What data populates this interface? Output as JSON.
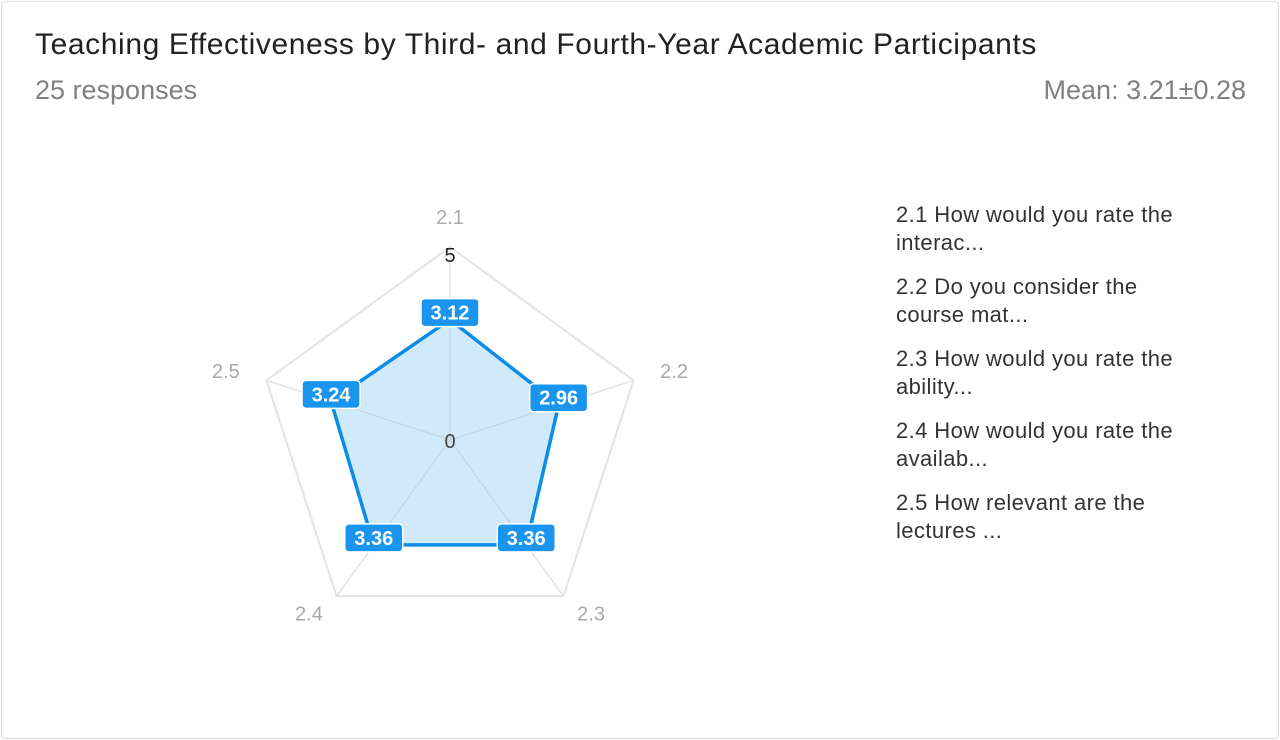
{
  "header": {
    "title": "Teaching Effectiveness by Third- and Fourth-Year Academic Participants",
    "responses": "25 responses",
    "mean": "Mean: 3.21±0.28"
  },
  "legend": {
    "items": [
      "2.1 How would you rate the interac...",
      "2.2 Do you consider the course mat...",
      "2.3 How would you rate the ability...",
      "2.4 How would you rate the availab...",
      "2.5 How relevant are the lectures ..."
    ]
  },
  "chart_data": {
    "type": "radar",
    "axes": [
      "2.1",
      "2.2",
      "2.3",
      "2.4",
      "2.5"
    ],
    "values": [
      3.12,
      2.96,
      3.36,
      3.36,
      3.24
    ],
    "value_labels": [
      "3.12",
      "2.96",
      "3.36",
      "3.36",
      "3.24"
    ],
    "range": [
      0,
      5
    ],
    "range_labels": [
      "0",
      "5"
    ],
    "colors": {
      "line": "#0a8de8",
      "fill": "#cde8fb",
      "label_bg": "#1a95ef",
      "grid": "#e3e3e3",
      "axis_label": "#a8a8a8"
    }
  }
}
